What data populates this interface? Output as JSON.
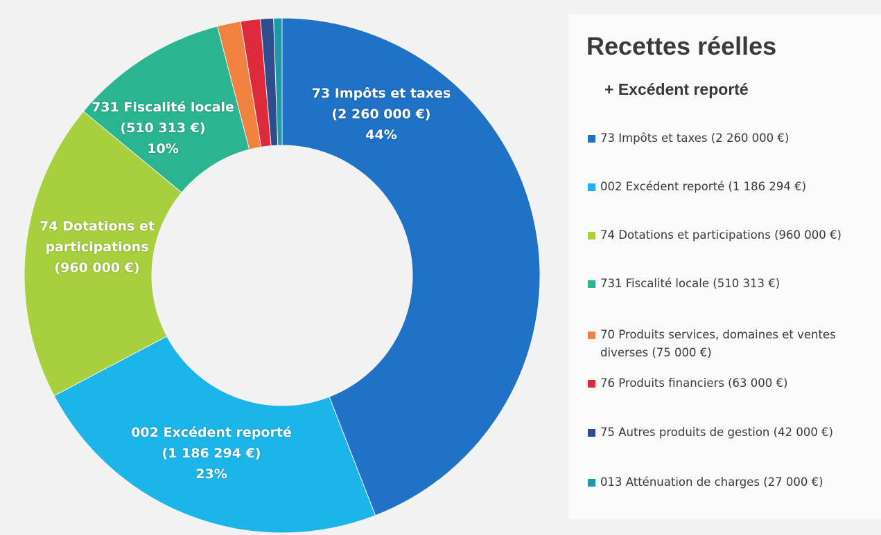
{
  "chart_data": {
    "type": "donut",
    "title": "Recettes réelles",
    "subtitle": "+ Excédent reporté",
    "categories": [
      "73 Impôts et taxes",
      "002 Excédent reporté",
      "74 Dotations et participations",
      "731 Fiscalité locale",
      "70 Produits services, domaines et ventes diverses",
      "76 Produits financiers",
      "75 Autres produits de gestion",
      "013 Atténuation de charges"
    ],
    "values": [
      2260000,
      1186294,
      960000,
      510313,
      75000,
      63000,
      42000,
      27000
    ],
    "value_labels": [
      "(2 260 000 €)",
      "(1 186 294 €)",
      "(960 000 €)",
      "(510 313 €)",
      "(75 000 €)",
      "(63 000 €)",
      "(42 000 €)",
      "(27 000 €)"
    ],
    "percent_labels": [
      "44%",
      "23%",
      null,
      "10%",
      null,
      null,
      null,
      null
    ],
    "colors": [
      "#1f72c6",
      "#1cb5ea",
      "#a8cf3e",
      "#2ab48f",
      "#f0813e",
      "#de2a3c",
      "#2f4d8d",
      "#1b9aa8"
    ],
    "legend": "right"
  }
}
